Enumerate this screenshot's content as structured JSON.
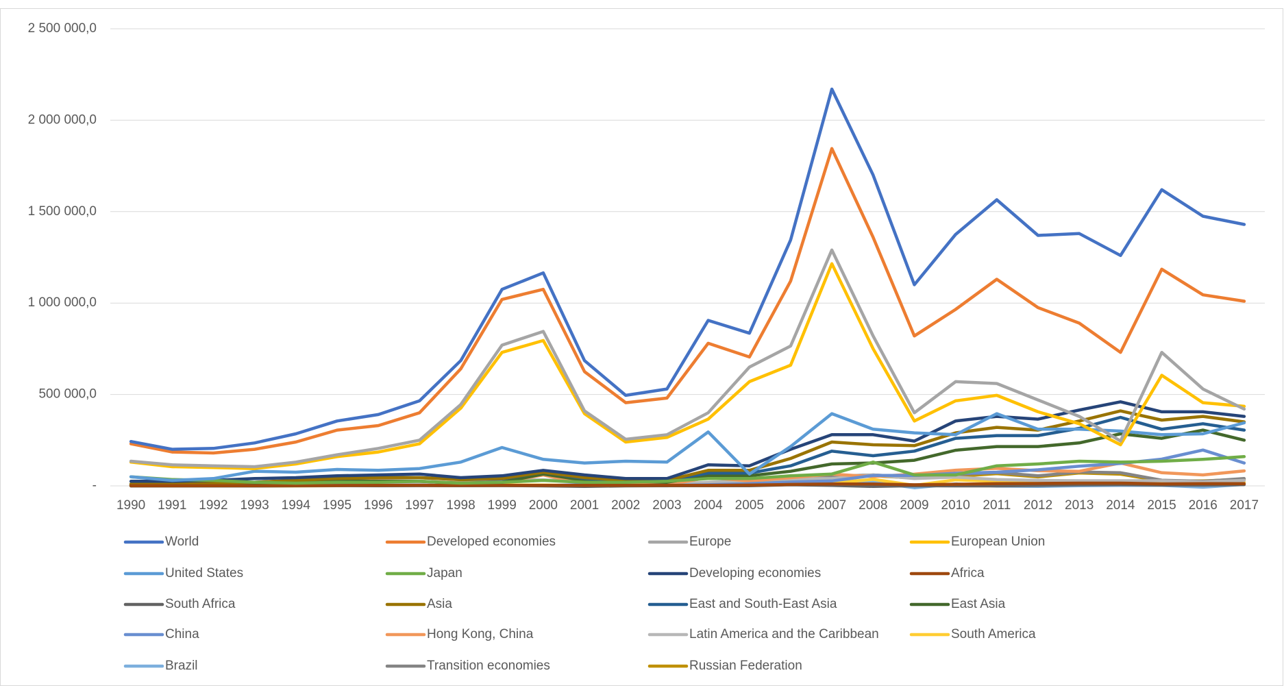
{
  "chart_data": {
    "type": "line",
    "categories": [
      "1990",
      "1991",
      "1992",
      "1993",
      "1994",
      "1995",
      "1996",
      "1997",
      "1998",
      "1999",
      "2000",
      "2001",
      "2002",
      "2003",
      "2004",
      "2005",
      "2006",
      "2007",
      "2008",
      "2009",
      "2010",
      "2011",
      "2012",
      "2013",
      "2014",
      "2015",
      "2016",
      "2017"
    ],
    "ylim": [
      0,
      2500000
    ],
    "yticks": [
      {
        "value": 0,
        "label": "-"
      },
      {
        "value": 500000,
        "label": "500 000,0"
      },
      {
        "value": 1000000,
        "label": "1 000 000,0"
      },
      {
        "value": 1500000,
        "label": "1 500 000,0"
      },
      {
        "value": 2000000,
        "label": "2 000 000,0"
      },
      {
        "value": 2500000,
        "label": "2 500 000,0"
      }
    ],
    "grid": true,
    "legend": "bottom",
    "series": [
      {
        "name": "World",
        "color": "#4472c4",
        "values": [
          243000,
          200000,
          205000,
          235000,
          285000,
          355000,
          390000,
          465000,
          685000,
          1075000,
          1165000,
          685000,
          495000,
          530000,
          905000,
          835000,
          1345000,
          2170000,
          1700000,
          1100000,
          1375000,
          1565000,
          1370000,
          1380000,
          1260000,
          1620000,
          1475000,
          1430000
        ]
      },
      {
        "name": "Developed economies",
        "color": "#ed7d31",
        "values": [
          230000,
          185000,
          180000,
          200000,
          240000,
          305000,
          330000,
          400000,
          640000,
          1020000,
          1075000,
          625000,
          455000,
          480000,
          780000,
          705000,
          1120000,
          1845000,
          1360000,
          820000,
          965000,
          1130000,
          975000,
          890000,
          730000,
          1185000,
          1045000,
          1010000
        ]
      },
      {
        "name": "Europe",
        "color": "#a5a5a5",
        "values": [
          135000,
          115000,
          110000,
          105000,
          130000,
          170000,
          205000,
          250000,
          445000,
          770000,
          845000,
          410000,
          255000,
          280000,
          400000,
          650000,
          765000,
          1290000,
          820000,
          400000,
          570000,
          560000,
          470000,
          380000,
          245000,
          730000,
          530000,
          420000
        ]
      },
      {
        "name": "European Union",
        "color": "#ffc000",
        "values": [
          130000,
          105000,
          100000,
          95000,
          120000,
          160000,
          185000,
          230000,
          425000,
          730000,
          795000,
          395000,
          240000,
          265000,
          365000,
          570000,
          660000,
          1215000,
          750000,
          355000,
          465000,
          495000,
          405000,
          340000,
          225000,
          605000,
          455000,
          435000
        ]
      },
      {
        "name": "United States",
        "color": "#5b9bd5",
        "values": [
          50000,
          30000,
          40000,
          80000,
          75000,
          90000,
          85000,
          95000,
          130000,
          210000,
          145000,
          125000,
          135000,
          130000,
          295000,
          65000,
          215000,
          395000,
          310000,
          290000,
          280000,
          395000,
          310000,
          310000,
          300000,
          280000,
          285000,
          345000
        ]
      },
      {
        "name": "Japan",
        "color": "#70ad47",
        "values": [
          50000,
          35000,
          30000,
          20000,
          15000,
          20000,
          20000,
          25000,
          15000,
          20000,
          30000,
          20000,
          20000,
          25000,
          40000,
          40000,
          55000,
          65000,
          130000,
          60000,
          60000,
          110000,
          120000,
          135000,
          130000,
          135000,
          145000,
          160000
        ]
      },
      {
        "name": "Developing economies",
        "color": "#264478",
        "values": [
          25000,
          25000,
          30000,
          40000,
          45000,
          55000,
          60000,
          65000,
          45000,
          55000,
          85000,
          60000,
          40000,
          40000,
          115000,
          110000,
          200000,
          280000,
          280000,
          245000,
          355000,
          380000,
          365000,
          415000,
          460000,
          405000,
          405000,
          380000
        ]
      },
      {
        "name": "Africa",
        "color": "#9e480e",
        "values": [
          1000,
          1000,
          1000,
          1000,
          2000,
          2000,
          3000,
          3000,
          3000,
          3000,
          3000,
          3000,
          3000,
          3000,
          3000,
          4000,
          8000,
          10000,
          10000,
          6000,
          9000,
          12000,
          13000,
          15000,
          15000,
          11000,
          12000,
          12000
        ]
      },
      {
        "name": "South Africa",
        "color": "#636363",
        "values": [
          0,
          0,
          0,
          0,
          1000,
          2000,
          1000,
          2000,
          1000,
          2000,
          0,
          -3000,
          0,
          1000,
          1000,
          1000,
          6000,
          3000,
          -3000,
          1000,
          0,
          0,
          3000,
          6000,
          7000,
          5000,
          4000,
          7000
        ]
      },
      {
        "name": "Asia",
        "color": "#997300",
        "values": [
          10000,
          12000,
          15000,
          20000,
          30000,
          40000,
          45000,
          45000,
          35000,
          40000,
          75000,
          45000,
          30000,
          30000,
          85000,
          85000,
          150000,
          240000,
          225000,
          220000,
          290000,
          320000,
          305000,
          355000,
          410000,
          360000,
          380000,
          350000
        ]
      },
      {
        "name": "East and South-East Asia",
        "color": "#255e91",
        "values": [
          10000,
          12000,
          15000,
          20000,
          30000,
          40000,
          45000,
          45000,
          35000,
          38000,
          75000,
          40000,
          30000,
          28000,
          70000,
          70000,
          110000,
          190000,
          165000,
          190000,
          260000,
          275000,
          275000,
          315000,
          375000,
          310000,
          340000,
          305000
        ]
      },
      {
        "name": "East Asia",
        "color": "#43682b",
        "values": [
          5000,
          8000,
          10000,
          12000,
          20000,
          25000,
          25000,
          25000,
          15000,
          20000,
          65000,
          30000,
          25000,
          20000,
          55000,
          55000,
          80000,
          120000,
          125000,
          140000,
          195000,
          215000,
          215000,
          235000,
          285000,
          260000,
          305000,
          250000
        ]
      },
      {
        "name": "China",
        "color": "#698ed0",
        "values": [
          1000,
          1000,
          4000,
          4000,
          2000,
          2000,
          2000,
          3000,
          3000,
          2000,
          1000,
          7000,
          3000,
          3000,
          6000,
          12000,
          21000,
          27000,
          57000,
          57000,
          69000,
          75000,
          88000,
          108000,
          123000,
          146000,
          196000,
          125000
        ]
      },
      {
        "name": "Hong Kong, China",
        "color": "#f1975a",
        "values": [
          2000,
          2000,
          8000,
          18000,
          21000,
          25000,
          27000,
          25000,
          17000,
          20000,
          60000,
          11000,
          17000,
          5000,
          46000,
          27000,
          45000,
          64000,
          51000,
          64000,
          86000,
          96000,
          83000,
          80000,
          125000,
          72000,
          60000,
          82000
        ]
      },
      {
        "name": "Latin America and the Caribbean",
        "color": "#b7b7b7",
        "values": [
          7000,
          7000,
          5000,
          6000,
          10000,
          7000,
          9000,
          16000,
          19000,
          35000,
          33000,
          24000,
          8000,
          9000,
          20000,
          30000,
          38000,
          40000,
          60000,
          40000,
          48000,
          35000,
          30000,
          28000,
          28000,
          28000,
          22000,
          30000
        ]
      },
      {
        "name": "South America",
        "color": "#ffcd33",
        "values": [
          2000,
          2000,
          1000,
          2000,
          3000,
          2000,
          5000,
          7000,
          5000,
          5000,
          5000,
          2000,
          2000,
          4000,
          12000,
          13000,
          35000,
          15000,
          36000,
          3000,
          33000,
          25000,
          20000,
          13000,
          25000,
          15000,
          10000,
          20000
        ]
      },
      {
        "name": "Brazil",
        "color": "#7cafdd",
        "values": [
          600,
          1000,
          100,
          500,
          1400,
          1200,
          500,
          1100,
          2800,
          1700,
          2300,
          -2200,
          2500,
          200,
          9800,
          2500,
          28000,
          7000,
          20000,
          -10000,
          11000,
          -1000,
          -3000,
          1000,
          3000,
          3000,
          -7000,
          8000
        ]
      },
      {
        "name": "Transition economies",
        "color": "#848484",
        "values": [
          0,
          0,
          0,
          0,
          1000,
          1000,
          1000,
          3000,
          1000,
          2000,
          3000,
          3000,
          5000,
          11000,
          14000,
          15000,
          24000,
          52000,
          60000,
          48000,
          62000,
          73000,
          55000,
          76000,
          72000,
          31000,
          25000,
          40000
        ]
      },
      {
        "name": "Russian Federation",
        "color": "#bf9000",
        "values": [
          0,
          0,
          0,
          0,
          0,
          600,
          900,
          3000,
          1300,
          2200,
          3200,
          2500,
          3500,
          9700,
          13800,
          17000,
          30000,
          45000,
          55000,
          43000,
          52000,
          67000,
          49000,
          71000,
          64000,
          27000,
          27000,
          36000
        ]
      }
    ]
  }
}
